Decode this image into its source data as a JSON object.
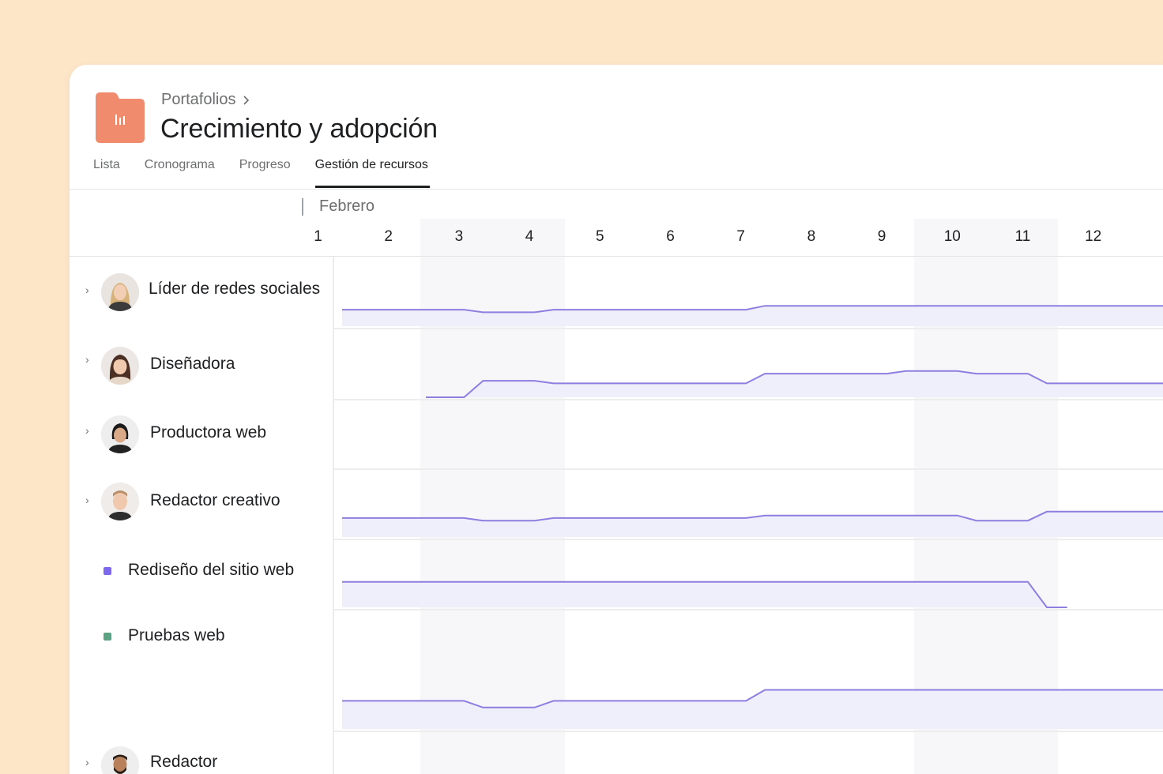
{
  "header": {
    "breadcrumb": "Portafolios",
    "title": "Crecimiento y adopción",
    "folder_color": "#f08b6e"
  },
  "tabs": [
    {
      "label": "Lista",
      "active": false
    },
    {
      "label": "Cronograma",
      "active": false
    },
    {
      "label": "Progreso",
      "active": false
    },
    {
      "label": "Gestión de recursos",
      "active": true
    }
  ],
  "timeline": {
    "month": "Febrero",
    "days": [
      "1",
      "2",
      "3",
      "4",
      "5",
      "6",
      "7",
      "8",
      "9",
      "10",
      "11",
      "12"
    ],
    "weekend_columns": [
      3,
      4,
      10,
      11
    ]
  },
  "rows": [
    {
      "label": "Líder de redes sociales",
      "type": "person",
      "avatar": "avatar-woman-blonde",
      "workload": [
        0.3,
        0.3,
        0.1,
        0.3,
        0.3,
        0.3,
        0.6,
        0.6,
        0.6,
        0.6,
        0.6,
        0.6
      ],
      "start": 1
    },
    {
      "label": "Diseñadora",
      "type": "person",
      "avatar": "avatar-woman-brunette",
      "workload": [
        0,
        0,
        0.3,
        0.1,
        0.1,
        0.1,
        0.85,
        0.85,
        1.05,
        0.85,
        0.1,
        0.1
      ],
      "start": 2.3
    },
    {
      "label": "Productora web",
      "type": "person",
      "avatar": "avatar-woman-dark-hair",
      "workload": [
        0,
        0,
        0,
        0,
        0,
        0,
        0,
        0,
        0,
        0,
        0,
        0
      ],
      "start": 1
    },
    {
      "label": "Redactor creativo",
      "type": "person",
      "avatar": "avatar-man-light-hair",
      "workload": [
        0.5,
        0.5,
        0.3,
        0.5,
        0.5,
        0.5,
        0.7,
        0.7,
        0.7,
        0.3,
        1.0,
        1.0
      ],
      "start": 1
    },
    {
      "label": "Rediseño del sitio web",
      "type": "project",
      "color": "#7b68ee",
      "workload": [
        1,
        1,
        1,
        1,
        1,
        1,
        1,
        1,
        1,
        1,
        0,
        0
      ],
      "start": 1,
      "end": 11.4
    },
    {
      "label": "Pruebas web",
      "type": "project",
      "color": "#5da283",
      "workload": [
        0.7,
        0.7,
        0.4,
        0.7,
        0.7,
        0.7,
        1.2,
        1.2,
        1.2,
        1.2,
        1.2,
        1.2
      ],
      "start": 1
    },
    {
      "label": "Redactor",
      "type": "person",
      "avatar": "avatar-man-beard",
      "workload": [],
      "start": 1
    }
  ],
  "colors": {
    "line": "#8e7ee0",
    "fill": "#efeefb",
    "weekend": "#f7f6f9"
  }
}
